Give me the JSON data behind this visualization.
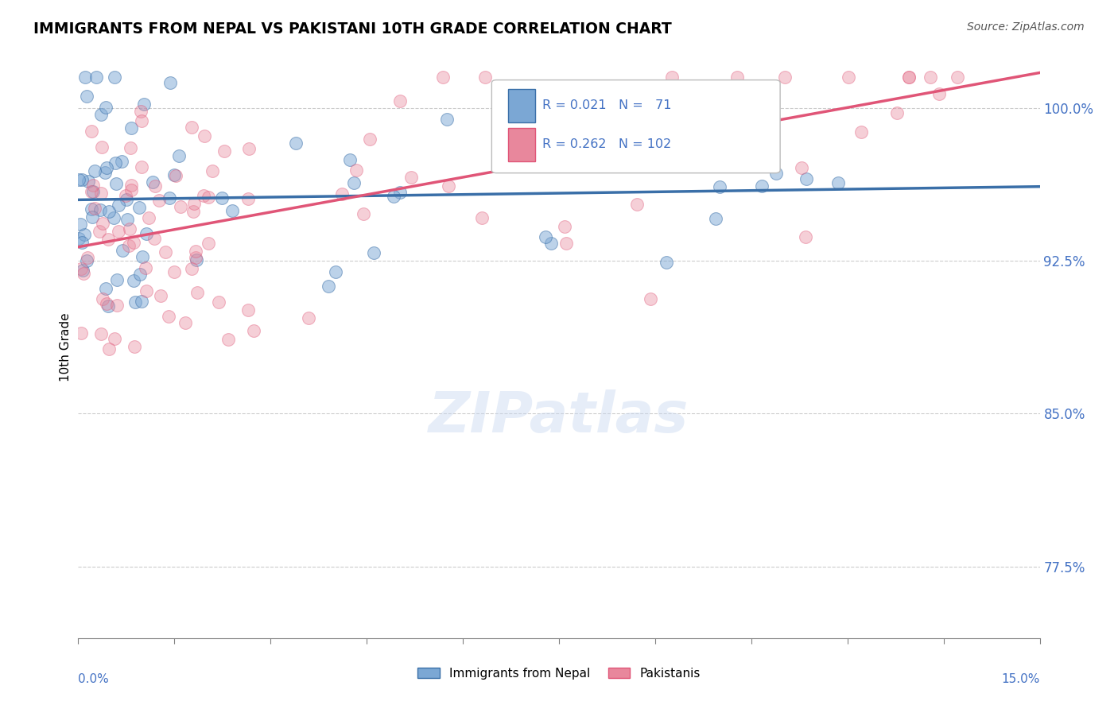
{
  "title": "IMMIGRANTS FROM NEPAL VS PAKISTANI 10TH GRADE CORRELATION CHART",
  "source": "Source: ZipAtlas.com",
  "ylabel": "10th Grade",
  "xlim": [
    0.0,
    15.0
  ],
  "ylim": [
    74.0,
    102.5
  ],
  "yticks": [
    77.5,
    85.0,
    92.5,
    100.0
  ],
  "ytick_labels": [
    "77.5%",
    "85.0%",
    "92.5%",
    "100.0%"
  ],
  "nepal_R": 0.021,
  "nepal_N": 71,
  "pak_R": 0.262,
  "pak_N": 102,
  "nepal_color": "#7ba7d4",
  "pak_color": "#e8879c",
  "nepal_line_color": "#3a6fa8",
  "pak_line_color": "#e05577",
  "watermark": "ZIPatlas",
  "nepal_seed": 10,
  "pak_seed": 20,
  "label_color": "#4472c4",
  "grid_color": "#cccccc",
  "source_color": "#555555"
}
